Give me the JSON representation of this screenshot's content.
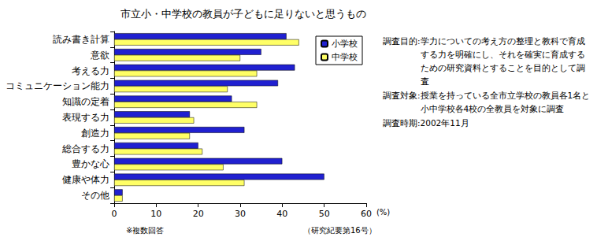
{
  "chart_data": {
    "type": "bar",
    "orientation": "horizontal",
    "title": "市立小・中学校の教員が子どもに足りないと思うもの",
    "x_label": "(%)",
    "categories": [
      "読み書き計算",
      "意欲",
      "考える力",
      "コミュニケーション能力",
      "知識の定着",
      "表現する力",
      "創造力",
      "総合する力",
      "豊かな心",
      "健康や体力",
      "その他"
    ],
    "series": [
      {
        "name": "小学校",
        "color": "#2020d0",
        "values": [
          41,
          35,
          43,
          39,
          28,
          18,
          31,
          20,
          40,
          50,
          2
        ]
      },
      {
        "name": "中学校",
        "color": "#ffff66",
        "values": [
          44,
          30,
          34,
          27,
          34,
          19,
          18,
          21,
          26,
          31,
          2
        ]
      }
    ],
    "xlim": [
      0,
      60
    ],
    "xticks": [
      0,
      10,
      20,
      30,
      40,
      50,
      60
    ],
    "grid": false,
    "legend": "top-right",
    "annotations": [
      "※複数回答",
      "（研究紀要第16号）"
    ],
    "survey": [
      {
        "label": "調査目的:",
        "text": "学力についての考え方の整理と教科で育成する力を明確にし、それを確実に育成するための研究資料とすることを目的として調査"
      },
      {
        "label": "調査対象:",
        "text": "授業を持っている全市立学校の教員各1名と小中学校各4校の全教員を対象に調査"
      },
      {
        "label": "調査時期:",
        "text": "2002年11月"
      }
    ]
  }
}
